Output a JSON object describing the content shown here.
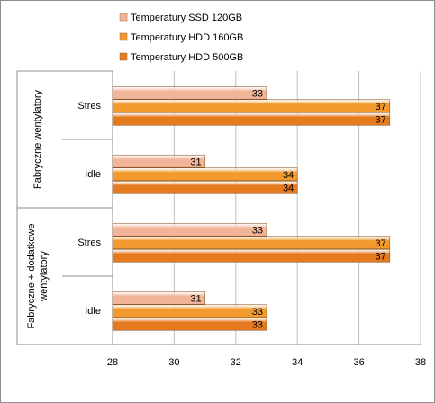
{
  "chart_data": {
    "type": "bar",
    "orientation": "horizontal",
    "xlim": [
      28,
      38
    ],
    "x_ticks": [
      28,
      30,
      32,
      34,
      36,
      38
    ],
    "grid": true,
    "legend_position": "top-left",
    "groups": [
      {
        "name": "Fabryczne  wentylatory",
        "categories": [
          {
            "name": "Stres",
            "values": [
              33,
              37,
              37
            ]
          },
          {
            "name": "Idle",
            "values": [
              31,
              34,
              34
            ]
          }
        ]
      },
      {
        "name": "Fabryczne + dodatkowe wentylatory",
        "name_lines": [
          "Fabryczne + dodatkowe",
          "wentylatory"
        ],
        "categories": [
          {
            "name": "Stres",
            "values": [
              33,
              37,
              37
            ]
          },
          {
            "name": "Idle",
            "values": [
              31,
              33,
              33
            ]
          }
        ]
      }
    ],
    "series": [
      {
        "name": "Temperatury  SSD 120GB",
        "color": "#f2b59a"
      },
      {
        "name": "Temperatury  HDD 160GB",
        "color": "#f29a2e"
      },
      {
        "name": "Temperatury  HDD 500GB",
        "color": "#e67a1f"
      }
    ]
  }
}
